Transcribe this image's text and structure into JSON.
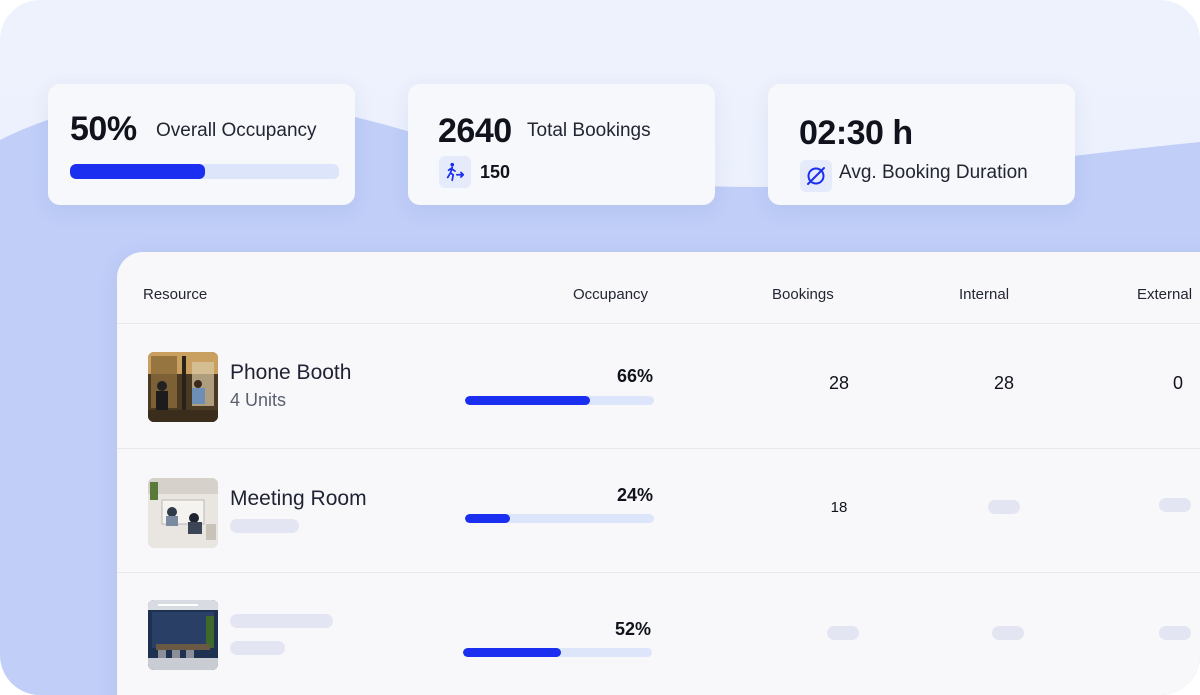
{
  "colors": {
    "accent": "#1a2ff0",
    "bar_track": "#dde5fb",
    "wave": "#c0cef8",
    "card_bg": "#f7f8fb",
    "skeleton": "#e3e6f2"
  },
  "kpis": {
    "occupancy": {
      "value": "50%",
      "label": "Overall Occupancy",
      "progress": 0.5
    },
    "bookings": {
      "value": "2640",
      "label": "Total Bookings",
      "icon": "walk-in-icon",
      "sub_value": "150"
    },
    "duration": {
      "value": "02:30 h",
      "label": "Avg. Booking Duration",
      "icon": "average-icon"
    }
  },
  "table": {
    "headers": {
      "resource": "Resource",
      "occupancy": "Occupancy",
      "bookings": "Bookings",
      "internal": "Internal",
      "external": "External"
    },
    "rows": [
      {
        "name": "Phone Booth",
        "sub": "4 Units",
        "thumb": "phone-booth-photo",
        "occupancy": "66%",
        "occupancy_fraction": 0.66,
        "bookings": "28",
        "internal": "28",
        "external": "0"
      },
      {
        "name": "Meeting Room",
        "sub": "",
        "thumb": "meeting-room-photo",
        "occupancy": "24%",
        "occupancy_fraction": 0.24,
        "bookings": "18",
        "internal": "",
        "external": ""
      },
      {
        "name": "",
        "sub": "",
        "thumb": "conference-room-photo",
        "occupancy": "52%",
        "occupancy_fraction": 0.52,
        "bookings": "",
        "internal": "",
        "external": ""
      }
    ]
  }
}
